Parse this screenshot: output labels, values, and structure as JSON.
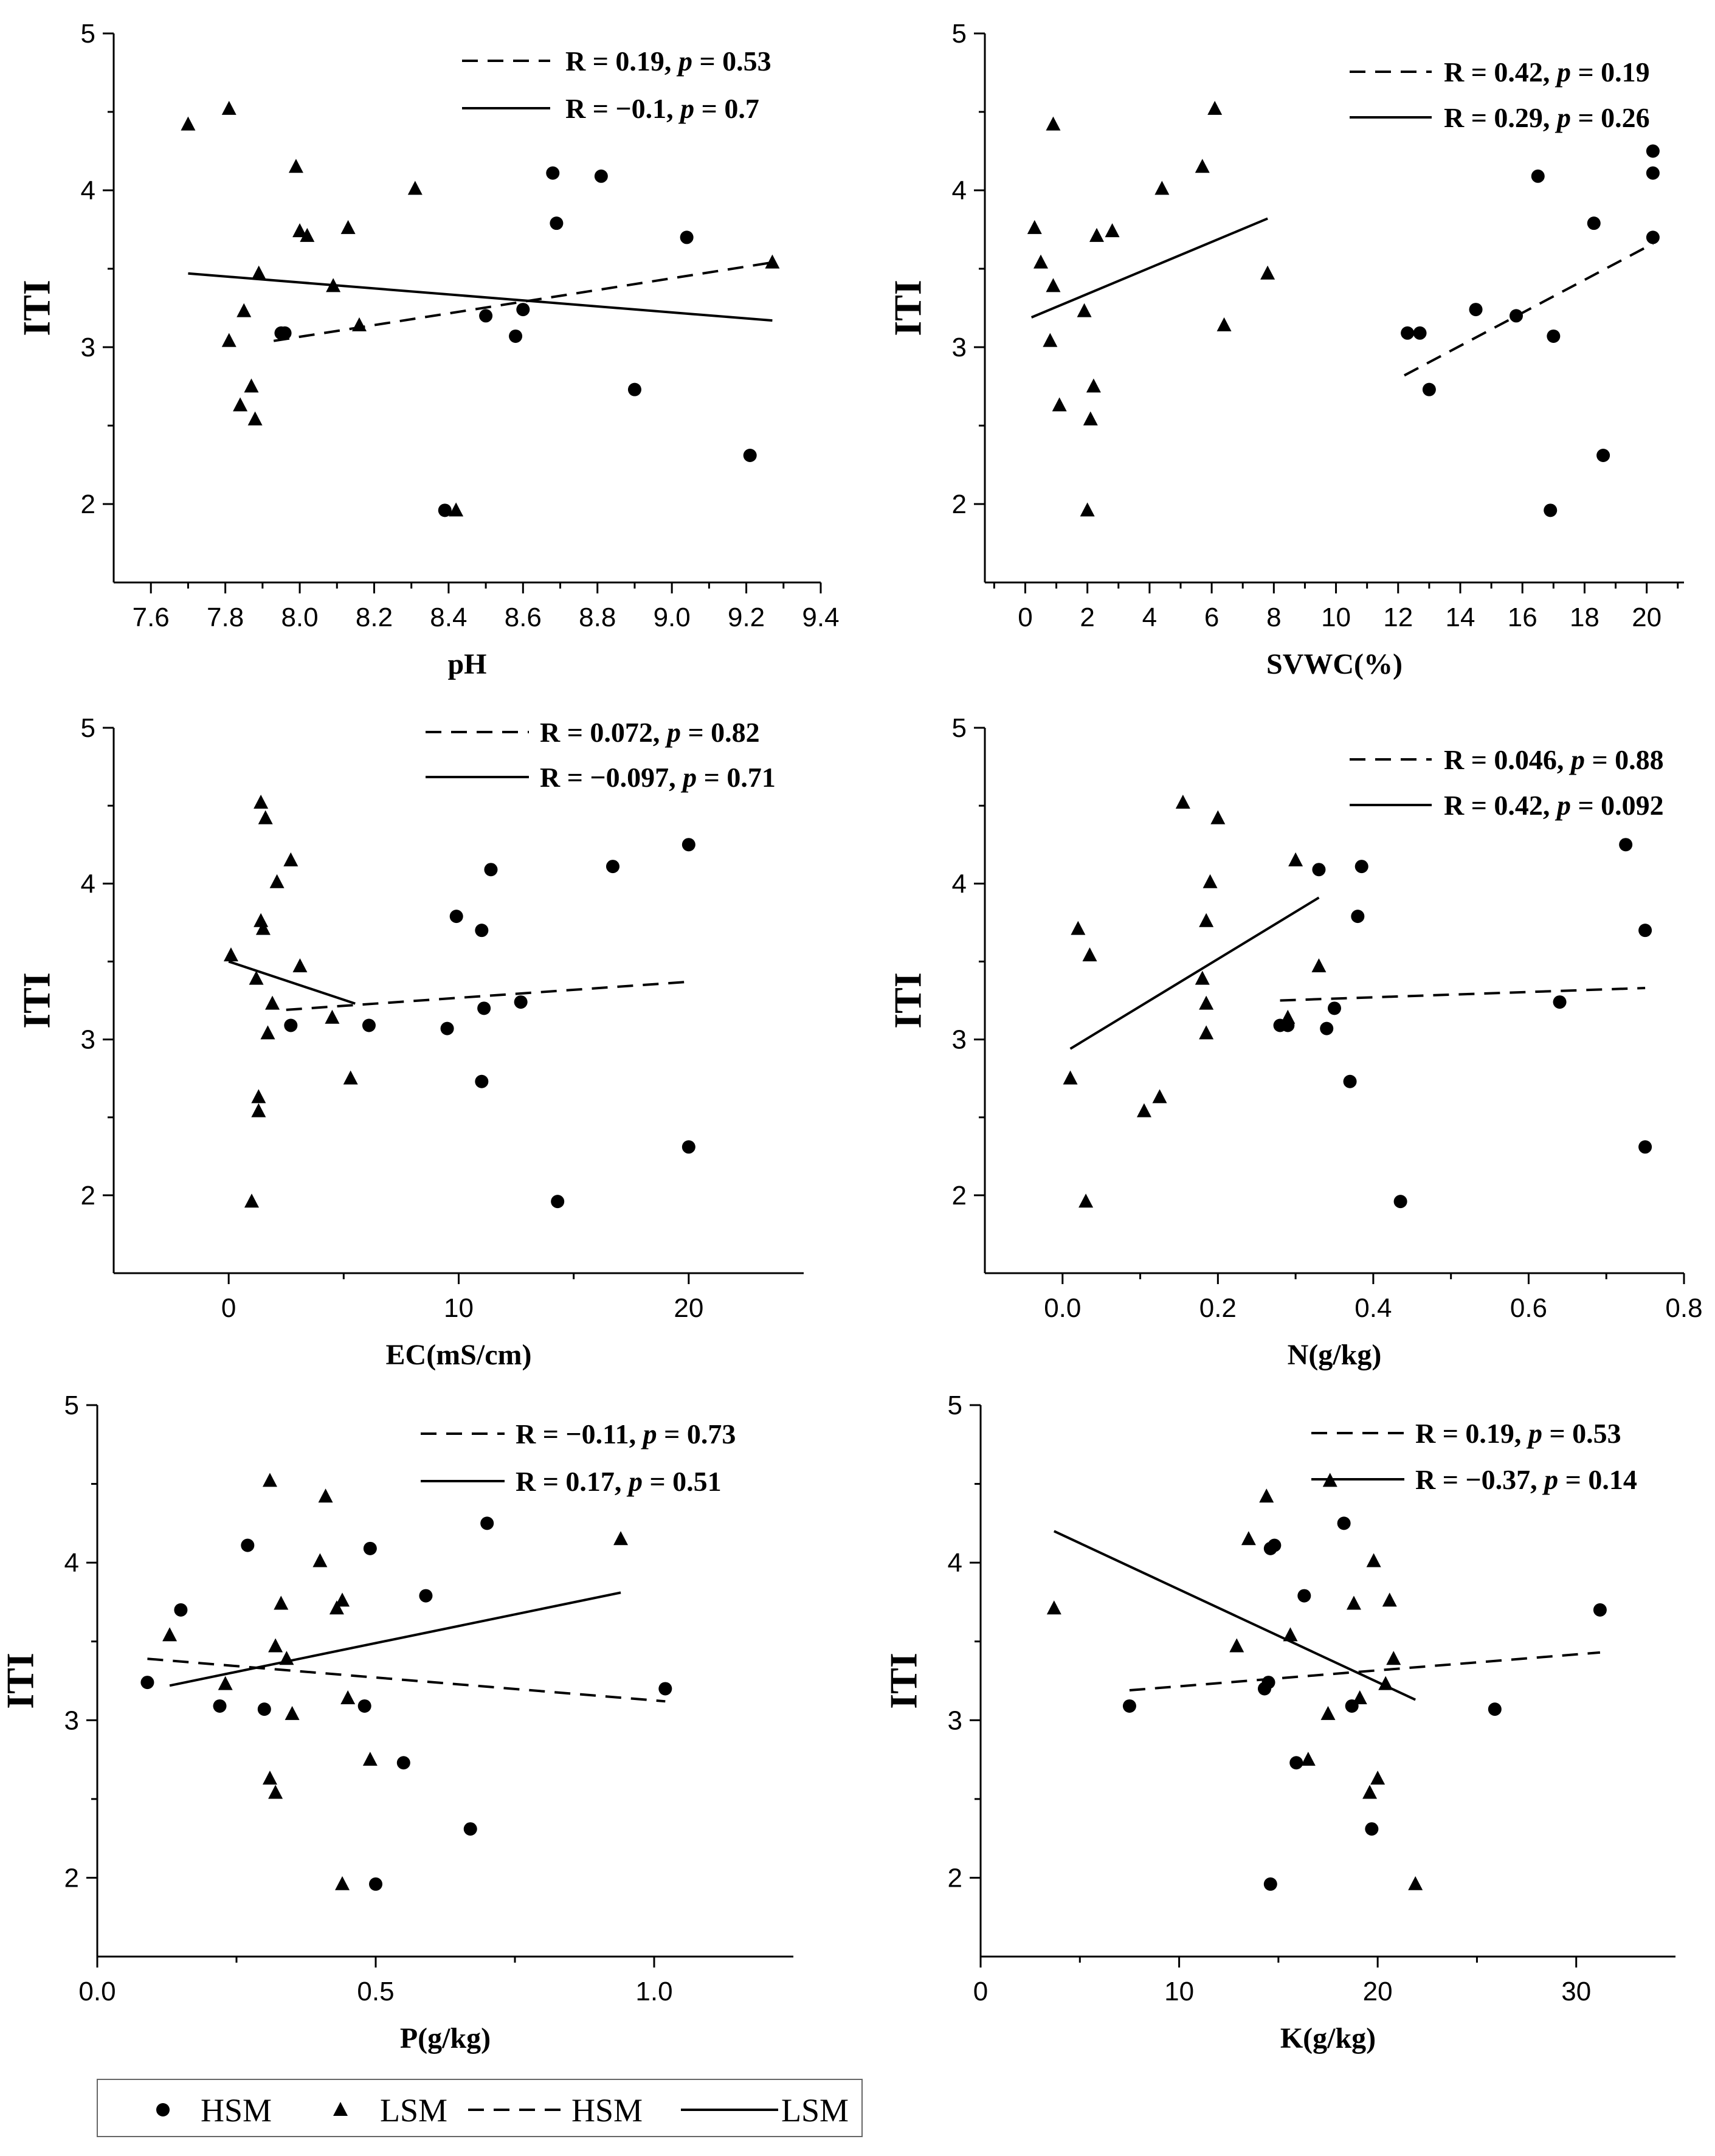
{
  "figure": {
    "legend": [
      {
        "key": "hsm_points",
        "label": "HSM"
      },
      {
        "key": "lsm_points",
        "label": "LSM"
      },
      {
        "key": "hsm_line",
        "label": "HSM"
      },
      {
        "key": "lsm_line",
        "label": "LSM"
      }
    ]
  },
  "chart_data": [
    {
      "type": "scatter",
      "xlabel": "pH",
      "ylabel": "ITI",
      "xlim": [
        7.5,
        9.4
      ],
      "ylim": [
        1.5,
        5.0
      ],
      "xticks": [
        7.6,
        7.8,
        8.0,
        8.2,
        8.4,
        8.6,
        8.8,
        9.0,
        9.2,
        9.4
      ],
      "yticks": [
        2,
        3,
        4,
        5
      ],
      "xtick_format": 1,
      "series": [
        {
          "name": "HSM",
          "marker": "circle",
          "points": [
            [
              7.95,
              3.09
            ],
            [
              7.96,
              3.09
            ],
            [
              8.39,
              1.96
            ],
            [
              8.5,
              3.2
            ],
            [
              8.58,
              3.07
            ],
            [
              8.6,
              3.24
            ],
            [
              8.69,
              3.79
            ],
            [
              8.68,
              4.11
            ],
            [
              8.81,
              4.09
            ],
            [
              8.9,
              2.73
            ],
            [
              9.04,
              3.7
            ],
            [
              9.21,
              2.31
            ]
          ]
        },
        {
          "name": "LSM",
          "marker": "triangle",
          "points": [
            [
              7.7,
              4.42
            ],
            [
              7.81,
              4.52
            ],
            [
              7.81,
              3.04
            ],
            [
              7.84,
              2.63
            ],
            [
              7.85,
              3.23
            ],
            [
              7.87,
              2.75
            ],
            [
              7.88,
              2.54
            ],
            [
              7.89,
              3.47
            ],
            [
              7.99,
              4.15
            ],
            [
              8.0,
              3.74
            ],
            [
              8.02,
              3.71
            ],
            [
              8.09,
              3.39
            ],
            [
              8.13,
              3.76
            ],
            [
              8.16,
              3.14
            ],
            [
              8.31,
              4.01
            ],
            [
              8.42,
              1.96
            ],
            [
              9.27,
              3.54
            ]
          ]
        }
      ],
      "fits": [
        {
          "name": "HSM",
          "style": "dashed",
          "x": [
            7.93,
            9.27
          ],
          "y": [
            3.04,
            3.54
          ],
          "label": "R = 0.19, p = 0.53",
          "r_text": "R = 0.19, ",
          "p_text": " = 0.53"
        },
        {
          "name": "LSM",
          "style": "solid",
          "x": [
            7.7,
            9.27
          ],
          "y": [
            3.47,
            3.17
          ],
          "label": "R = −0.1, p = 0.7",
          "r_text": "R = −0.1, ",
          "p_text": " = 0.7"
        }
      ]
    },
    {
      "type": "scatter",
      "xlabel": "SVWC(%)",
      "ylabel": "ITI",
      "xlim": [
        -1.3,
        21.2
      ],
      "ylim": [
        1.5,
        5.0
      ],
      "xticks": [
        0,
        2,
        4,
        6,
        8,
        10,
        12,
        14,
        16,
        18,
        20
      ],
      "yticks": [
        2,
        3,
        4,
        5
      ],
      "xtick_format": 0,
      "series": [
        {
          "name": "HSM",
          "marker": "circle",
          "points": [
            [
              12.3,
              3.09
            ],
            [
              12.7,
              3.09
            ],
            [
              13.0,
              2.73
            ],
            [
              14.5,
              3.24
            ],
            [
              15.8,
              3.2
            ],
            [
              16.5,
              4.09
            ],
            [
              16.9,
              1.96
            ],
            [
              17.0,
              3.07
            ],
            [
              18.3,
              3.79
            ],
            [
              18.6,
              2.31
            ],
            [
              20.2,
              4.25
            ],
            [
              20.2,
              4.11
            ],
            [
              20.2,
              3.7
            ]
          ]
        },
        {
          "name": "LSM",
          "marker": "triangle",
          "points": [
            [
              0.3,
              3.76
            ],
            [
              0.5,
              3.54
            ],
            [
              0.8,
              3.04
            ],
            [
              0.9,
              4.42
            ],
            [
              0.9,
              3.39
            ],
            [
              1.1,
              2.63
            ],
            [
              1.9,
              3.23
            ],
            [
              2.0,
              1.96
            ],
            [
              2.1,
              2.54
            ],
            [
              2.2,
              2.75
            ],
            [
              2.3,
              3.71
            ],
            [
              2.8,
              3.74
            ],
            [
              4.4,
              4.01
            ],
            [
              5.7,
              4.15
            ],
            [
              6.1,
              4.52
            ],
            [
              6.4,
              3.14
            ],
            [
              7.8,
              3.47
            ]
          ]
        }
      ],
      "fits": [
        {
          "name": "HSM",
          "style": "dashed",
          "x": [
            12.2,
            20.2
          ],
          "y": [
            2.82,
            3.66
          ],
          "label": "R = 0.42, p = 0.19",
          "r_text": "R = 0.42, ",
          "p_text": " = 0.19"
        },
        {
          "name": "LSM",
          "style": "solid",
          "x": [
            0.2,
            7.8
          ],
          "y": [
            3.19,
            3.82
          ],
          "label": "R = 0.29, p = 0.26",
          "r_text": "R = 0.29, ",
          "p_text": " = 0.26"
        }
      ]
    },
    {
      "type": "scatter",
      "xlabel": "EC(mS/cm)",
      "ylabel": "ITI",
      "xlim": [
        -5,
        25
      ],
      "ylim": [
        1.5,
        5.0
      ],
      "xticks": [
        0,
        10,
        20
      ],
      "yticks": [
        2,
        3,
        4,
        5
      ],
      "xtick_format": 0,
      "series": [
        {
          "name": "HSM",
          "marker": "circle",
          "points": [
            [
              2.7,
              3.09
            ],
            [
              6.1,
              3.09
            ],
            [
              9.5,
              3.07
            ],
            [
              9.9,
              3.79
            ],
            [
              11.0,
              2.73
            ],
            [
              11.0,
              3.7
            ],
            [
              11.1,
              3.2
            ],
            [
              11.4,
              4.09
            ],
            [
              12.7,
              3.24
            ],
            [
              14.3,
              1.96
            ],
            [
              16.7,
              4.11
            ],
            [
              20.0,
              4.25
            ],
            [
              20.0,
              2.31
            ]
          ]
        },
        {
          "name": "LSM",
          "marker": "triangle",
          "points": [
            [
              0.1,
              3.54
            ],
            [
              1.0,
              1.96
            ],
            [
              1.2,
              3.39
            ],
            [
              1.3,
              2.63
            ],
            [
              1.3,
              2.54
            ],
            [
              1.4,
              4.52
            ],
            [
              1.4,
              3.76
            ],
            [
              1.5,
              3.71
            ],
            [
              1.6,
              4.42
            ],
            [
              1.7,
              3.04
            ],
            [
              1.9,
              3.23
            ],
            [
              2.1,
              4.01
            ],
            [
              2.7,
              4.15
            ],
            [
              3.1,
              3.47
            ],
            [
              4.5,
              3.14
            ],
            [
              5.3,
              2.75
            ]
          ]
        }
      ],
      "fits": [
        {
          "name": "HSM",
          "style": "dashed",
          "x": [
            2.5,
            20.0
          ],
          "y": [
            3.19,
            3.37
          ],
          "label": "R = 0.072, p = 0.82",
          "r_text": "R = 0.072, ",
          "p_text": " = 0.82"
        },
        {
          "name": "LSM",
          "style": "solid",
          "x": [
            0.0,
            5.5
          ],
          "y": [
            3.5,
            3.23
          ],
          "label": "R = −0.097, p = 0.71",
          "r_text": "R = −0.097, ",
          "p_text": " = 0.71"
        }
      ]
    },
    {
      "type": "scatter",
      "xlabel": "N(g/kg)",
      "ylabel": "ITI",
      "xlim": [
        -0.1,
        0.8
      ],
      "ylim": [
        1.5,
        5.0
      ],
      "xticks": [
        0.0,
        0.2,
        0.4,
        0.6,
        0.8
      ],
      "yticks": [
        2,
        3,
        4,
        5
      ],
      "xtick_format": 1,
      "series": [
        {
          "name": "HSM",
          "marker": "circle",
          "points": [
            [
              0.28,
              3.09
            ],
            [
              0.29,
              3.09
            ],
            [
              0.33,
              4.09
            ],
            [
              0.34,
              3.07
            ],
            [
              0.35,
              3.2
            ],
            [
              0.37,
              2.73
            ],
            [
              0.38,
              3.79
            ],
            [
              0.385,
              4.11
            ],
            [
              0.435,
              1.96
            ],
            [
              0.64,
              3.24
            ],
            [
              0.725,
              4.25
            ],
            [
              0.75,
              3.7
            ],
            [
              0.75,
              2.31
            ]
          ]
        },
        {
          "name": "LSM",
          "marker": "triangle",
          "points": [
            [
              0.01,
              2.75
            ],
            [
              0.02,
              3.71
            ],
            [
              0.03,
              1.96
            ],
            [
              0.035,
              3.54
            ],
            [
              0.105,
              2.54
            ],
            [
              0.125,
              2.63
            ],
            [
              0.155,
              4.52
            ],
            [
              0.18,
              3.39
            ],
            [
              0.185,
              3.23
            ],
            [
              0.185,
              3.76
            ],
            [
              0.185,
              3.04
            ],
            [
              0.19,
              4.01
            ],
            [
              0.2,
              4.42
            ],
            [
              0.29,
              3.14
            ],
            [
              0.3,
              4.15
            ],
            [
              0.33,
              3.47
            ]
          ]
        }
      ],
      "fits": [
        {
          "name": "HSM",
          "style": "dashed",
          "x": [
            0.28,
            0.75
          ],
          "y": [
            3.25,
            3.33
          ],
          "label": "R = 0.046, p = 0.88",
          "r_text": "R = 0.046, ",
          "p_text": " = 0.88"
        },
        {
          "name": "LSM",
          "style": "solid",
          "x": [
            0.01,
            0.33
          ],
          "y": [
            2.94,
            3.91
          ],
          "label": "R = 0.42, p = 0.092",
          "r_text": "R = 0.42, ",
          "p_text": " = 0.092"
        }
      ]
    },
    {
      "type": "scatter",
      "xlabel": "P(g/kg)",
      "ylabel": "ITI",
      "xlim": [
        0.0,
        1.25
      ],
      "ylim": [
        1.5,
        5.0
      ],
      "xticks": [
        0.0,
        0.5,
        1.0
      ],
      "yticks": [
        2,
        3,
        4,
        5
      ],
      "xtick_format": 1,
      "series": [
        {
          "name": "HSM",
          "marker": "circle",
          "points": [
            [
              0.09,
              3.24
            ],
            [
              0.15,
              3.7
            ],
            [
              0.22,
              3.09
            ],
            [
              0.27,
              4.11
            ],
            [
              0.3,
              3.07
            ],
            [
              0.48,
              3.09
            ],
            [
              0.49,
              4.09
            ],
            [
              0.5,
              1.96
            ],
            [
              0.55,
              2.73
            ],
            [
              0.59,
              3.79
            ],
            [
              0.67,
              2.31
            ],
            [
              0.7,
              4.25
            ],
            [
              1.02,
              3.2
            ]
          ]
        },
        {
          "name": "LSM",
          "marker": "triangle",
          "points": [
            [
              0.13,
              3.54
            ],
            [
              0.23,
              3.23
            ],
            [
              0.31,
              2.63
            ],
            [
              0.31,
              4.52
            ],
            [
              0.32,
              2.54
            ],
            [
              0.32,
              3.47
            ],
            [
              0.33,
              3.74
            ],
            [
              0.34,
              3.39
            ],
            [
              0.35,
              3.04
            ],
            [
              0.4,
              4.01
            ],
            [
              0.41,
              4.42
            ],
            [
              0.43,
              3.71
            ],
            [
              0.44,
              3.76
            ],
            [
              0.44,
              1.96
            ],
            [
              0.45,
              3.14
            ],
            [
              0.49,
              2.75
            ],
            [
              0.94,
              4.15
            ]
          ]
        }
      ],
      "fits": [
        {
          "name": "HSM",
          "style": "dashed",
          "x": [
            0.09,
            1.02
          ],
          "y": [
            3.39,
            3.12
          ],
          "label": "R = −0.11, p = 0.73",
          "r_text": "R = −0.11, ",
          "p_text": " = 0.73"
        },
        {
          "name": "LSM",
          "style": "solid",
          "x": [
            0.13,
            0.94
          ],
          "y": [
            3.22,
            3.81
          ],
          "label": "R = 0.17, p = 0.51",
          "r_text": "R = 0.17, ",
          "p_text": " = 0.51"
        }
      ]
    },
    {
      "type": "scatter",
      "xlabel": "K(g/kg)",
      "ylabel": "ITI",
      "xlim": [
        0,
        35
      ],
      "ylim": [
        1.5,
        5.0
      ],
      "xticks": [
        0,
        10,
        20,
        30
      ],
      "yticks": [
        2,
        3,
        4,
        5
      ],
      "xtick_format": 0,
      "series": [
        {
          "name": "HSM",
          "marker": "circle",
          "points": [
            [
              7.5,
              3.09
            ],
            [
              14.3,
              3.2
            ],
            [
              14.5,
              3.24
            ],
            [
              14.6,
              4.09
            ],
            [
              14.8,
              4.11
            ],
            [
              14.6,
              1.96
            ],
            [
              15.9,
              2.73
            ],
            [
              16.3,
              3.79
            ],
            [
              18.3,
              4.25
            ],
            [
              18.7,
              3.09
            ],
            [
              19.7,
              2.31
            ],
            [
              25.9,
              3.07
            ],
            [
              31.2,
              3.7
            ]
          ]
        },
        {
          "name": "LSM",
          "marker": "triangle",
          "points": [
            [
              3.7,
              3.71
            ],
            [
              12.9,
              3.47
            ],
            [
              13.5,
              4.15
            ],
            [
              14.4,
              4.42
            ],
            [
              15.6,
              3.54
            ],
            [
              16.5,
              2.75
            ],
            [
              17.5,
              3.04
            ],
            [
              17.6,
              4.52
            ],
            [
              18.8,
              3.74
            ],
            [
              19.1,
              3.14
            ],
            [
              19.6,
              2.54
            ],
            [
              19.8,
              4.01
            ],
            [
              20.0,
              2.63
            ],
            [
              20.4,
              3.23
            ],
            [
              20.6,
              3.76
            ],
            [
              20.8,
              3.39
            ],
            [
              21.9,
              1.96
            ]
          ]
        }
      ],
      "fits": [
        {
          "name": "HSM",
          "style": "dashed",
          "x": [
            7.5,
            31.2
          ],
          "y": [
            3.19,
            3.43
          ],
          "label": "R = 0.19, p = 0.53",
          "r_text": "R = 0.19, ",
          "p_text": " = 0.53"
        },
        {
          "name": "LSM",
          "style": "solid",
          "x": [
            3.7,
            21.9
          ],
          "y": [
            4.2,
            3.13
          ],
          "label": "R = −0.37, p = 0.14",
          "r_text": "R = −0.37, ",
          "p_text": " = 0.14"
        }
      ]
    }
  ]
}
